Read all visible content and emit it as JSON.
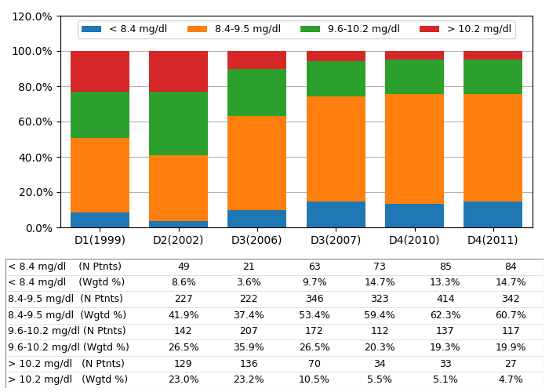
{
  "chart_data": {
    "type": "bar",
    "stacked": true,
    "categories": [
      "D1(1999)",
      "D2(2002)",
      "D3(2006)",
      "D3(2007)",
      "D4(2010)",
      "D4(2011)"
    ],
    "series": [
      {
        "name": "< 8.4 mg/dl",
        "values": [
          8.6,
          3.6,
          9.7,
          14.7,
          13.3,
          14.7
        ]
      },
      {
        "name": "8.4-9.5 mg/dl",
        "values": [
          41.9,
          37.4,
          53.4,
          59.4,
          62.3,
          60.7
        ]
      },
      {
        "name": "9.6-10.2 mg/dl",
        "values": [
          26.5,
          35.9,
          26.5,
          20.3,
          19.3,
          19.9
        ]
      },
      {
        "name": "> 10.2 mg/dl",
        "values": [
          23.0,
          23.2,
          10.5,
          5.5,
          5.1,
          4.7
        ]
      }
    ],
    "ylim": [
      0,
      120
    ],
    "yticks": [
      {
        "value": 0,
        "label": "0.0%"
      },
      {
        "value": 20,
        "label": "20.0%"
      },
      {
        "value": 40,
        "label": "40.0%"
      },
      {
        "value": 60,
        "label": "60.0%"
      },
      {
        "value": 80,
        "label": "80.0%"
      },
      {
        "value": 100,
        "label": "100.0%"
      },
      {
        "value": 120,
        "label": "120.0%"
      }
    ],
    "grid": "y",
    "legend": "upper center",
    "table_rows": [
      {
        "label": "< 8.4 mg/dl    (N Ptnts)",
        "values": [
          "49",
          "21",
          "63",
          "73",
          "85",
          "84"
        ]
      },
      {
        "label": "< 8.4 mg/dl    (Wgtd %)",
        "values": [
          "8.6%",
          "3.6%",
          "9.7%",
          "14.7%",
          "13.3%",
          "14.7%"
        ]
      },
      {
        "label": "8.4-9.5 mg/dl  (N Ptnts)",
        "values": [
          "227",
          "222",
          "346",
          "323",
          "414",
          "342"
        ]
      },
      {
        "label": "8.4-9.5 mg/dl  (Wgtd %)",
        "values": [
          "41.9%",
          "37.4%",
          "53.4%",
          "59.4%",
          "62.3%",
          "60.7%"
        ]
      },
      {
        "label": "9.6-10.2 mg/dl (N Ptnts)",
        "values": [
          "142",
          "207",
          "172",
          "112",
          "137",
          "117"
        ]
      },
      {
        "label": "9.6-10.2 mg/dl (Wgtd %)",
        "values": [
          "26.5%",
          "35.9%",
          "26.5%",
          "20.3%",
          "19.3%",
          "19.9%"
        ]
      },
      {
        "label": "> 10.2 mg/dl   (N Ptnts)",
        "values": [
          "129",
          "136",
          "70",
          "34",
          "33",
          "27"
        ]
      },
      {
        "label": "> 10.2 mg/dl   (Wgtd %)",
        "values": [
          "23.0%",
          "23.2%",
          "10.5%",
          "5.5%",
          "5.1%",
          "4.7%"
        ]
      }
    ]
  }
}
